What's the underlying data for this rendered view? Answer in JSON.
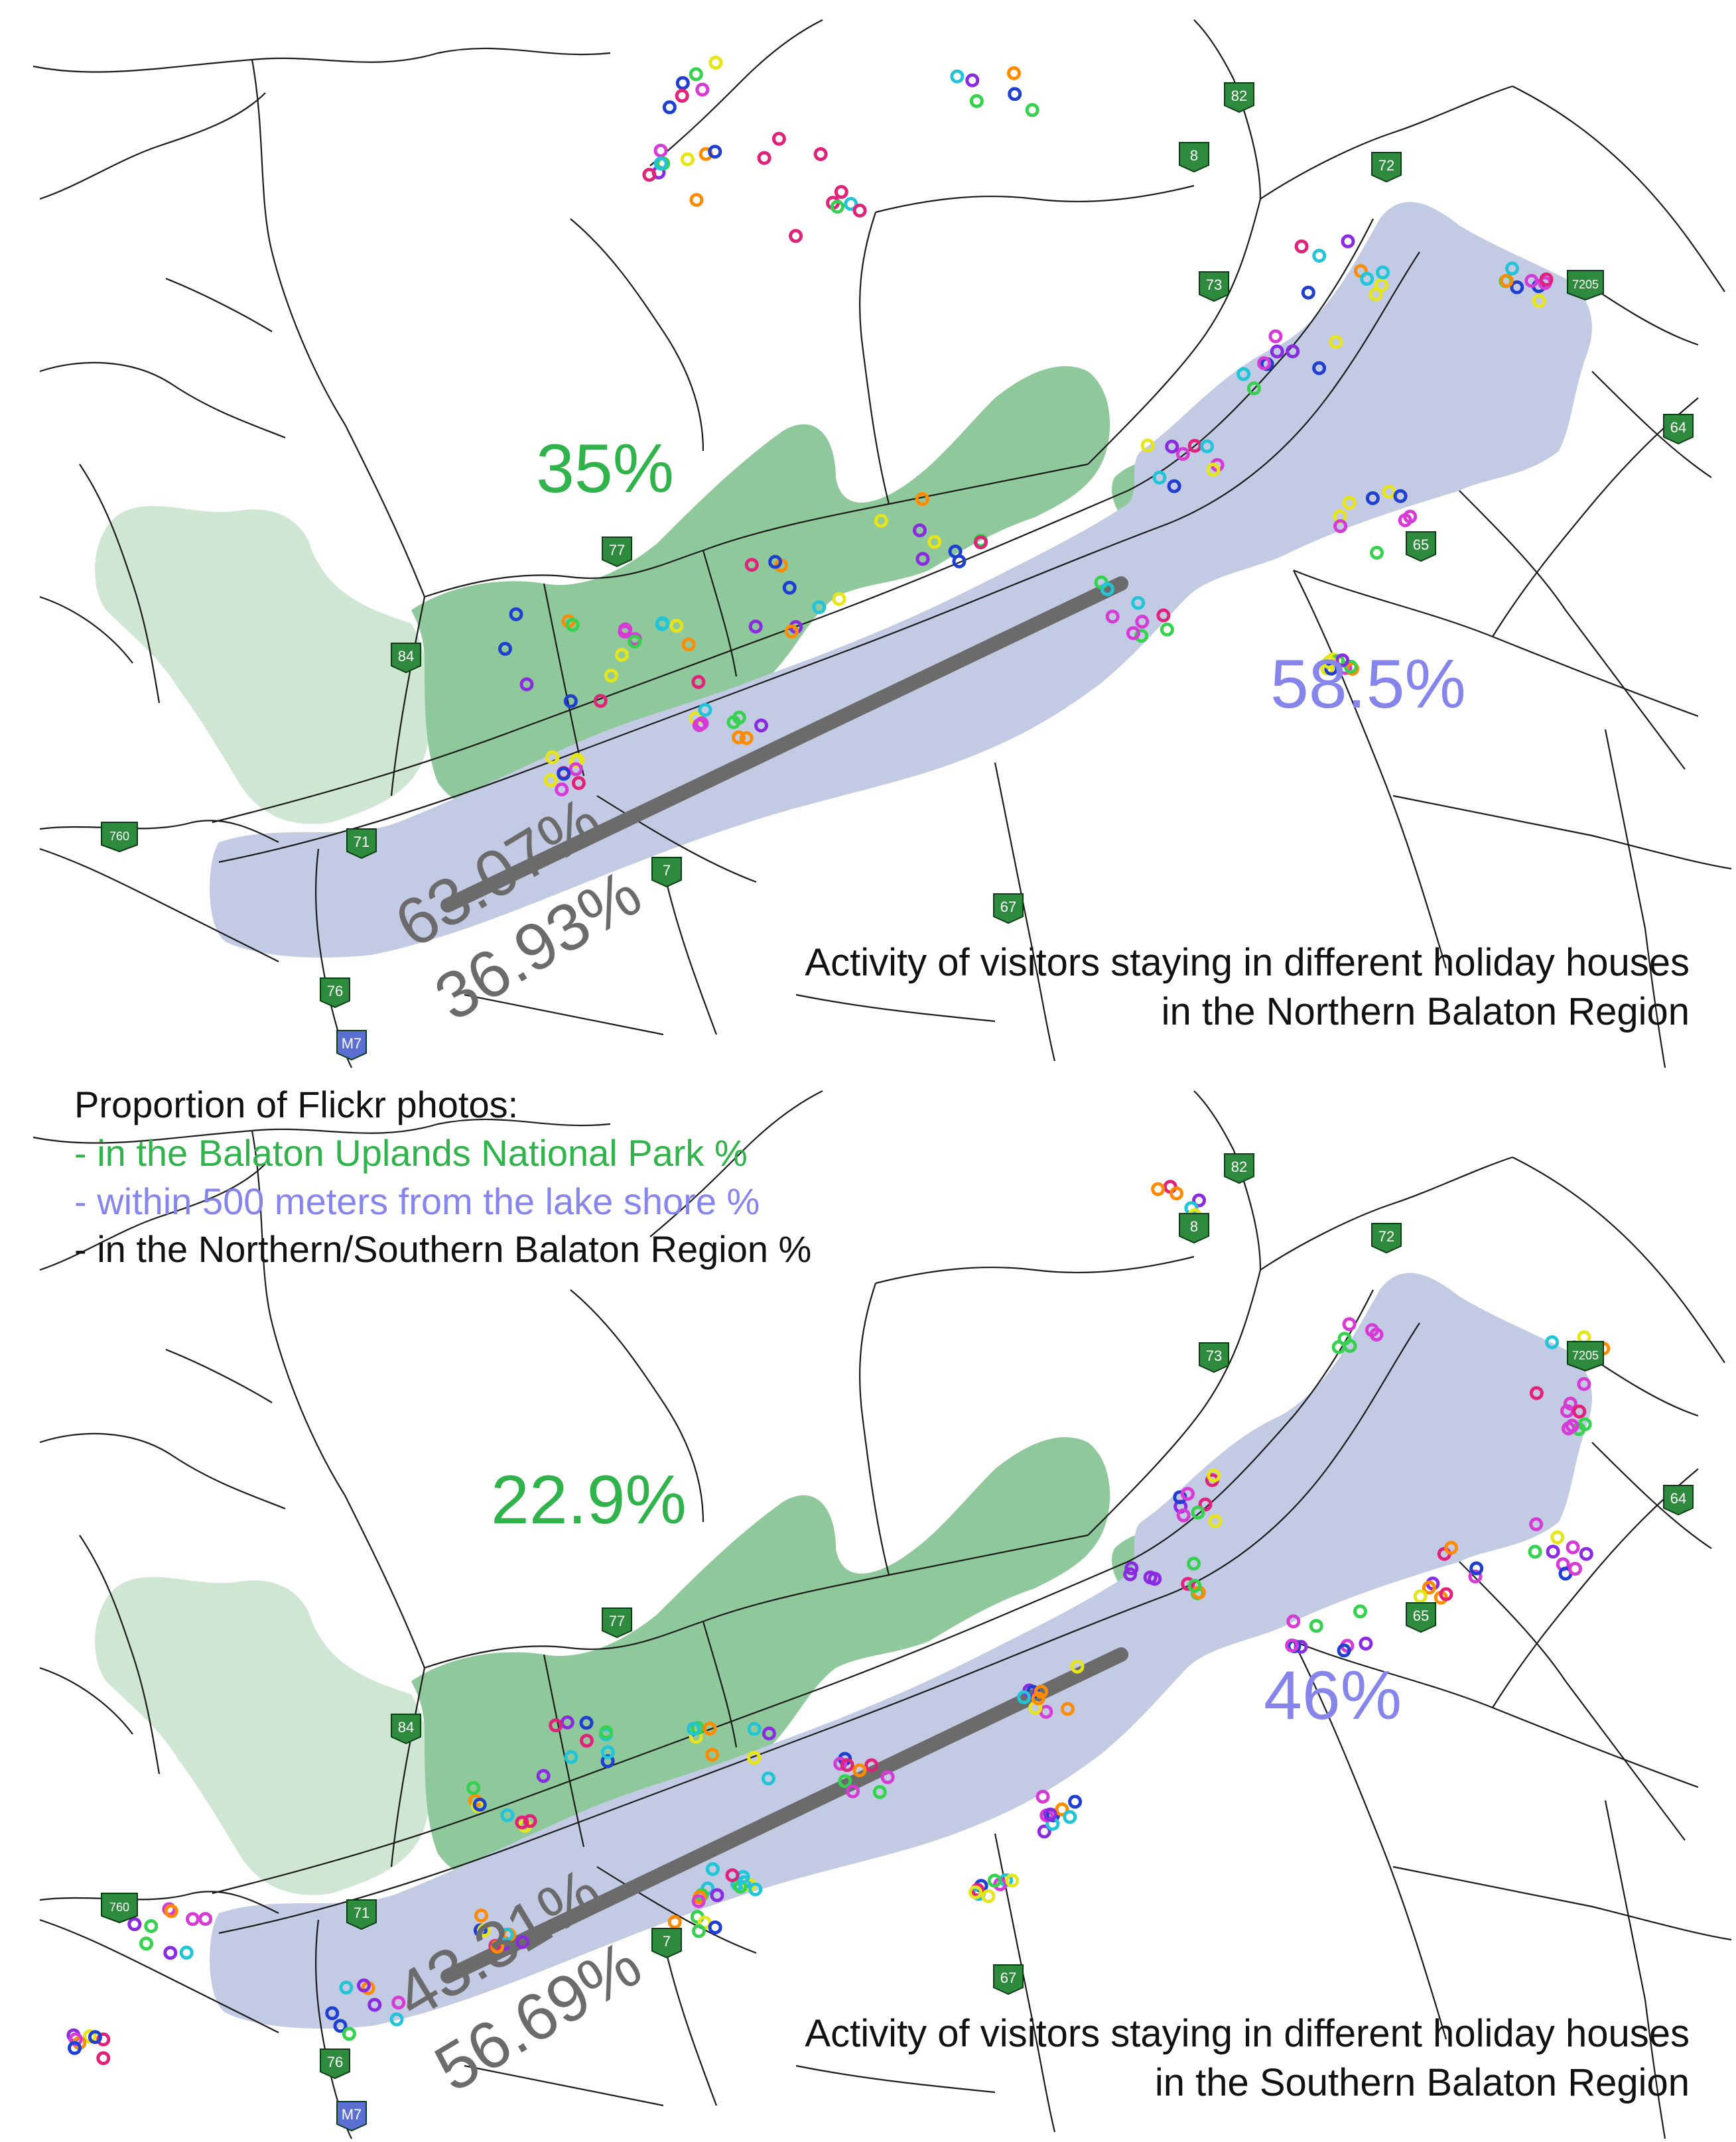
{
  "panels": [
    {
      "id": "north",
      "park_pct": "35%",
      "shore_pct": "58.5%",
      "split_upper": "63.07%",
      "split_lower": "36.93%",
      "caption_line1": "Activity of visitors staying in different holiday houses",
      "caption_line2": "in the Northern Balaton Region"
    },
    {
      "id": "south",
      "park_pct": "22.9%",
      "shore_pct": "46%",
      "split_upper": "43.31%",
      "split_lower": "56.69%",
      "caption_line1": "Activity of visitors staying in different holiday houses",
      "caption_line2": "in the Southern Balaton Region"
    }
  ],
  "legend": {
    "title": "Proportion of Flickr photos:",
    "park": "- in the Balaton Uplands National Park %",
    "shore": "- within 500 meters from the lake shore %",
    "region": "- in the Northern/Southern Balaton Region %"
  },
  "road_shields": [
    "82",
    "8",
    "72",
    "73",
    "7205",
    "64",
    "77",
    "84",
    "65",
    "760",
    "71",
    "7",
    "67",
    "76",
    "M7"
  ],
  "colors": {
    "lake": "#c3cbe4",
    "park_dark": "#8fc99b",
    "park_light": "#cfe6d3",
    "roads": "#1a1a1a",
    "shield": "#2e8b3e",
    "motorway_shield": "#5a6fd1",
    "split_bar": "#6b6b6b",
    "point_colors": [
      "#d63bd6",
      "#e0227a",
      "#22c5d8",
      "#e5e51a",
      "#1f3fd1",
      "#8a2be2",
      "#36d14f",
      "#ff8c00"
    ]
  }
}
